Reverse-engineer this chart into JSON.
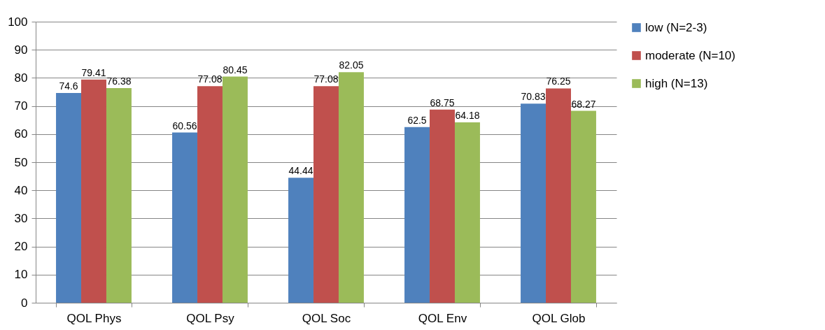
{
  "chart_data": {
    "type": "bar",
    "categories": [
      "QOL Phys",
      "QOL Psy",
      "QOL Soc",
      "QOL Env",
      "QOL Glob"
    ],
    "series": [
      {
        "name": "low (N=2-3)",
        "color": "#4f81bd",
        "values": [
          74.6,
          60.56,
          44.44,
          62.5,
          70.83
        ]
      },
      {
        "name": "moderate (N=10)",
        "color": "#c0504d",
        "values": [
          79.41,
          77.08,
          77.08,
          68.75,
          76.25
        ]
      },
      {
        "name": "high (N=13)",
        "color": "#9bbb59",
        "values": [
          76.38,
          80.45,
          82.05,
          64.18,
          68.27
        ]
      }
    ],
    "ylim": [
      0,
      100
    ],
    "yticks": [
      0,
      10,
      20,
      30,
      40,
      50,
      60,
      70,
      80,
      90,
      100
    ],
    "grid": "y",
    "legend": "right",
    "data_labels": true
  }
}
